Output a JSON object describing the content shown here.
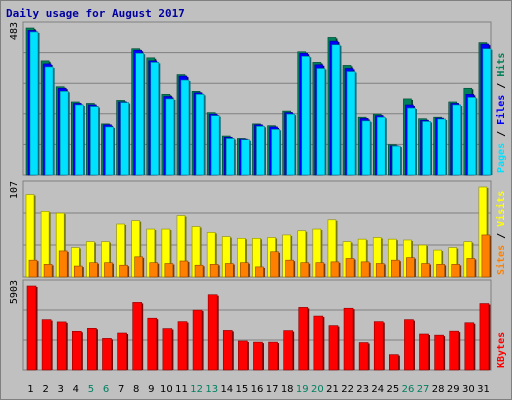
{
  "chart_data": {
    "type": "bar",
    "title": "Daily usage for August 2017",
    "categories": [
      "1",
      "2",
      "3",
      "4",
      "5",
      "6",
      "7",
      "8",
      "9",
      "10",
      "11",
      "12",
      "13",
      "14",
      "15",
      "16",
      "17",
      "18",
      "19",
      "20",
      "21",
      "22",
      "23",
      "24",
      "25",
      "26",
      "27",
      "28",
      "29",
      "30",
      "31"
    ],
    "weekend_days": [
      "5",
      "6",
      "12",
      "13",
      "19",
      "20",
      "26",
      "27"
    ],
    "colors": {
      "hits": "#00805a",
      "files": "#0000ff",
      "pages": "#00e0ff",
      "visits": "#ffff00",
      "sites": "#ff8000",
      "kbytes": "#ff0000",
      "title": "#0000a0",
      "weekend_label": "#008060",
      "panel_bg": "#c0c0c0"
    },
    "panels": [
      {
        "id": "top",
        "max_label": "483",
        "ymax": 483,
        "right_label": [
          {
            "text": "Pages",
            "color": "#00e0ff"
          },
          {
            "text": " / ",
            "color": "#000000"
          },
          {
            "text": "Files",
            "color": "#0000ff"
          },
          {
            "text": " / ",
            "color": "#000000"
          },
          {
            "text": "Hits",
            "color": "#00805a"
          }
        ],
        "series": [
          {
            "name": "Hits",
            "values": [
              483,
              375,
              290,
              240,
              235,
              168,
              245,
              415,
              385,
              265,
              330,
              275,
              205,
              128,
              120,
              168,
              162,
              210,
              405,
              370,
              452,
              360,
              190,
              200,
              100,
              250,
              185,
              190,
              240,
              285,
              435
            ]
          },
          {
            "name": "Files",
            "values": [
              475,
              365,
              285,
              235,
              230,
              165,
              240,
              410,
              375,
              258,
              325,
              270,
              200,
              124,
              118,
              165,
              158,
              205,
              400,
              362,
              440,
              350,
              186,
              195,
              96,
              230,
              180,
              187,
              235,
              265,
              430
            ]
          },
          {
            "name": "Pages",
            "values": [
              470,
              355,
              275,
              230,
              225,
              158,
              238,
              400,
              370,
              250,
              312,
              265,
              195,
              120,
              116,
              160,
              150,
              200,
              390,
              350,
              428,
              340,
              178,
              190,
              95,
              220,
              176,
              184,
              230,
              255,
              415
            ]
          }
        ]
      },
      {
        "id": "middle",
        "max_label": "107",
        "ymax": 107,
        "right_label": [
          {
            "text": "Sites",
            "color": "#ff8000"
          },
          {
            "text": " / ",
            "color": "#000000"
          },
          {
            "text": "Visits",
            "color": "#ffff00"
          }
        ],
        "series": [
          {
            "name": "Visits",
            "values": [
              98,
              78,
              76,
              35,
              42,
              42,
              63,
              67,
              57,
              57,
              73,
              60,
              53,
              48,
              46,
              46,
              47,
              50,
              55,
              57,
              68,
              42,
              45,
              47,
              45,
              44,
              38,
              32,
              35,
              42,
              107
            ]
          },
          {
            "name": "Sites",
            "values": [
              20,
              15,
              31,
              13,
              17,
              17,
              14,
              24,
              17,
              16,
              19,
              14,
              15,
              16,
              17,
              12,
              30,
              20,
              17,
              17,
              18,
              22,
              18,
              16,
              20,
              23,
              16,
              15,
              15,
              22,
              50
            ]
          }
        ]
      },
      {
        "id": "bottom",
        "max_label": "5903",
        "ymax": 5903,
        "right_label": [
          {
            "text": "KBytes",
            "color": "#ff0000"
          }
        ],
        "series": [
          {
            "name": "KBytes",
            "values": [
              5903,
              3540,
              3380,
              2720,
              2930,
              2220,
              2600,
              4750,
              3640,
              2910,
              3400,
              4210,
              5290,
              2780,
              2040,
              1960,
              1960,
              2770,
              4400,
              3790,
              3120,
              4340,
              1930,
              3400,
              1080,
              3540,
              2530,
              2450,
              2730,
              3320,
              4670
            ]
          }
        ]
      }
    ]
  }
}
